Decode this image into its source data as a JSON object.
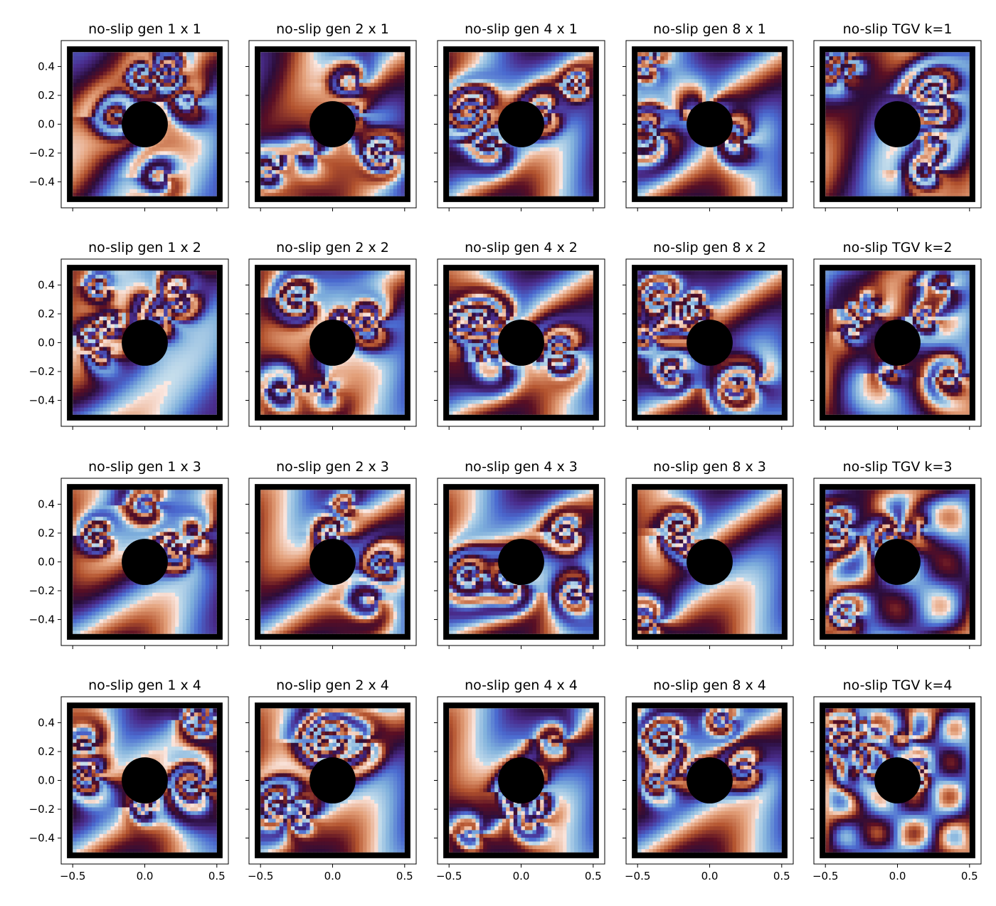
{
  "chart_data": {
    "type": "heatmap",
    "layout": {
      "rows": 4,
      "cols": 5
    },
    "panels": [
      {
        "title": "no-slip gen 1 x 1"
      },
      {
        "title": "no-slip gen 2 x 1"
      },
      {
        "title": "no-slip gen 4 x 1"
      },
      {
        "title": "no-slip gen 8 x 1"
      },
      {
        "title": "no-slip TGV k=1"
      },
      {
        "title": "no-slip gen 1 x 2"
      },
      {
        "title": "no-slip gen 2 x 2"
      },
      {
        "title": "no-slip gen 4 x 2"
      },
      {
        "title": "no-slip gen 8 x 2"
      },
      {
        "title": "no-slip TGV k=2"
      },
      {
        "title": "no-slip gen 1 x 3"
      },
      {
        "title": "no-slip gen 2 x 3"
      },
      {
        "title": "no-slip gen 4 x 3"
      },
      {
        "title": "no-slip gen 8 x 3"
      },
      {
        "title": "no-slip TGV k=3"
      },
      {
        "title": "no-slip gen 1 x 4"
      },
      {
        "title": "no-slip gen 2 x 4"
      },
      {
        "title": "no-slip gen 4 x 4"
      },
      {
        "title": "no-slip gen 8 x 4"
      },
      {
        "title": "no-slip TGV k=4"
      }
    ],
    "x_ticks": [
      -0.5,
      0.0,
      0.5
    ],
    "x_tick_labels": [
      "−0.5",
      "0.0",
      "0.5"
    ],
    "y_ticks": [
      0.4,
      0.2,
      0.0,
      -0.2,
      -0.4
    ],
    "y_tick_labels": [
      "0.4",
      "0.2",
      "0.0",
      "−0.2",
      "−0.4"
    ],
    "xlim": [
      -0.58,
      0.58
    ],
    "ylim": [
      -0.58,
      0.58
    ],
    "domain": {
      "fluid_min": -0.5,
      "fluid_max": 0.5,
      "wall_outer": 0.54
    },
    "obstacle": {
      "shape": "circle",
      "center": [
        0.0,
        0.0
      ],
      "radius": 0.16
    },
    "colormap": [
      "#fbe9e3",
      "#e3a07a",
      "#b3532e",
      "#5a0f24",
      "#2b0d3a",
      "#4a2d8e",
      "#4a6ad0",
      "#7fb0dc",
      "#c6deec"
    ],
    "colors": {
      "wall": "#000000",
      "obstacle": "#000000",
      "frame": "#000000"
    }
  }
}
